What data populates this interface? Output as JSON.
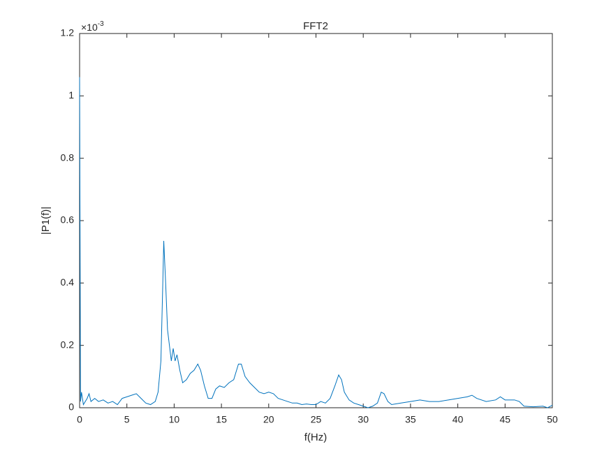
{
  "chart_data": {
    "type": "line",
    "title": "FFT2",
    "x_label": "f(Hz)",
    "y_label": "|P1(f)|",
    "y_exponent_base": "×10",
    "y_exponent": "-3",
    "xlim": [
      0,
      50
    ],
    "xticks": [
      0,
      5,
      10,
      15,
      20,
      25,
      30,
      35,
      40,
      45,
      50
    ],
    "ylim": [
      0,
      1.2
    ],
    "yticks": [
      0,
      0.2,
      0.4,
      0.6,
      0.8,
      1,
      1.2
    ],
    "x": [
      0,
      0.1,
      0.2,
      0.4,
      0.8,
      1.0,
      1.2,
      1.6,
      2.0,
      2.5,
      3.0,
      3.5,
      4.0,
      4.5,
      5.0,
      5.5,
      6.0,
      6.5,
      7.0,
      7.5,
      8.0,
      8.3,
      8.6,
      8.8,
      8.9,
      9.1,
      9.3,
      9.5,
      9.7,
      9.9,
      10.1,
      10.3,
      10.6,
      10.9,
      11.3,
      11.7,
      12.1,
      12.5,
      12.8,
      13.2,
      13.6,
      14.0,
      14.4,
      14.8,
      15.3,
      15.8,
      16.3,
      16.8,
      17.1,
      17.5,
      18.0,
      18.5,
      19.0,
      19.5,
      20.0,
      20.5,
      21.0,
      21.5,
      22.0,
      22.5,
      23.0,
      23.5,
      24.0,
      24.5,
      25.0,
      25.5,
      26.0,
      26.5,
      27.0,
      27.4,
      27.7,
      28.0,
      28.5,
      29.0,
      29.5,
      30.0,
      30.5,
      31.0,
      31.5,
      31.9,
      32.2,
      32.6,
      33.0,
      34.0,
      35.0,
      36.0,
      37.0,
      38.0,
      39.0,
      40.0,
      41.0,
      41.5,
      42.0,
      43.0,
      44.0,
      44.5,
      45.0,
      46.0,
      46.5,
      47.0,
      48.0,
      49.0,
      49.5,
      50.0
    ],
    "series": [
      {
        "name": "P1",
        "color": "#0072bd",
        "values": [
          1.06,
          0.02,
          0.05,
          0.01,
          0.03,
          0.045,
          0.02,
          0.03,
          0.02,
          0.025,
          0.015,
          0.02,
          0.01,
          0.03,
          0.035,
          0.04,
          0.045,
          0.03,
          0.015,
          0.01,
          0.02,
          0.05,
          0.15,
          0.4,
          0.535,
          0.4,
          0.25,
          0.2,
          0.15,
          0.19,
          0.15,
          0.17,
          0.12,
          0.08,
          0.09,
          0.11,
          0.12,
          0.14,
          0.12,
          0.07,
          0.03,
          0.03,
          0.06,
          0.07,
          0.065,
          0.08,
          0.09,
          0.14,
          0.14,
          0.1,
          0.08,
          0.065,
          0.05,
          0.045,
          0.05,
          0.045,
          0.03,
          0.025,
          0.02,
          0.015,
          0.015,
          0.01,
          0.012,
          0.01,
          0.01,
          0.02,
          0.015,
          0.03,
          0.07,
          0.105,
          0.09,
          0.05,
          0.025,
          0.015,
          0.01,
          0.005,
          0.0,
          0.005,
          0.015,
          0.05,
          0.045,
          0.02,
          0.01,
          0.015,
          0.02,
          0.025,
          0.02,
          0.02,
          0.025,
          0.03,
          0.035,
          0.04,
          0.03,
          0.02,
          0.025,
          0.035,
          0.025,
          0.025,
          0.02,
          0.005,
          0.003,
          0.005,
          0.0,
          0.008
        ]
      }
    ]
  }
}
